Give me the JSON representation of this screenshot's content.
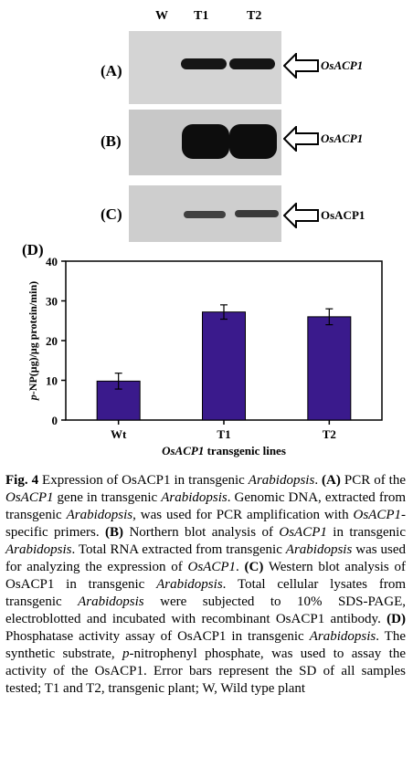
{
  "lanes": {
    "w": "W",
    "t1": "T1",
    "t2": "T2"
  },
  "panels": {
    "a": {
      "label": "(A)",
      "target": "OsACP1"
    },
    "b": {
      "label": "(B)",
      "target": "OsACP1"
    },
    "c": {
      "label": "(C)",
      "target": "OsACP1"
    },
    "d": {
      "label": "(D)"
    }
  },
  "chart_data": {
    "type": "bar",
    "categories": [
      "Wt",
      "T1",
      "T2"
    ],
    "values": [
      9.8,
      27.2,
      26.0
    ],
    "errors": [
      2.0,
      1.8,
      2.0
    ],
    "ylim": [
      0,
      40
    ],
    "yticks": [
      0,
      10,
      20,
      30,
      40
    ],
    "ylabel": "p-NP(μg)/μg protein/min)",
    "xlabel_italic": "OsACP1",
    "xlabel_rest": " transgenic lines",
    "bar_color": "#3a1a8c"
  },
  "caption": {
    "fig": "Fig. 4",
    "s1": " Expression of OsACP1 in transgenic ",
    "arab": "Arabidopsis",
    "dot": ".",
    "sp": " ",
    "a_label": "(A)",
    "a1": " PCR of the ",
    "gene": "OsACP1",
    "a2": " gene in transgenic ",
    "a3": " Genomic DNA, extracted from transgenic ",
    "a4": ", was used for PCR amplification with ",
    "a5": "-specific primers. ",
    "b_label": "(B)",
    "b1": " Northern blot analysis of ",
    "b2": " in transgenic ",
    "b3": " Total RNA extracted from transgenic ",
    "b4": " was used for analyzing the expression of ",
    "c_label": "(C)",
    "c1": " Western blot analysis of OsACP1 in transgenic ",
    "c2": " Total cellular lysates from transgenic ",
    "c3": " were subjected to 10% SDS-PAGE, electroblotted and incubated with recombinant OsACP1 antibody. ",
    "d_label": "(D)",
    "d1": " Phosphatase activity assay of OsACP1 in transgenic ",
    "d2": " The synthetic substrate, ",
    "pn": "p",
    "d3": "-nitrophenyl phosphate, was used to assay the activity of the OsACP1. Error bars represent the SD of all samples tested; T1 and T2, transgenic plant; W, Wild type plant"
  }
}
